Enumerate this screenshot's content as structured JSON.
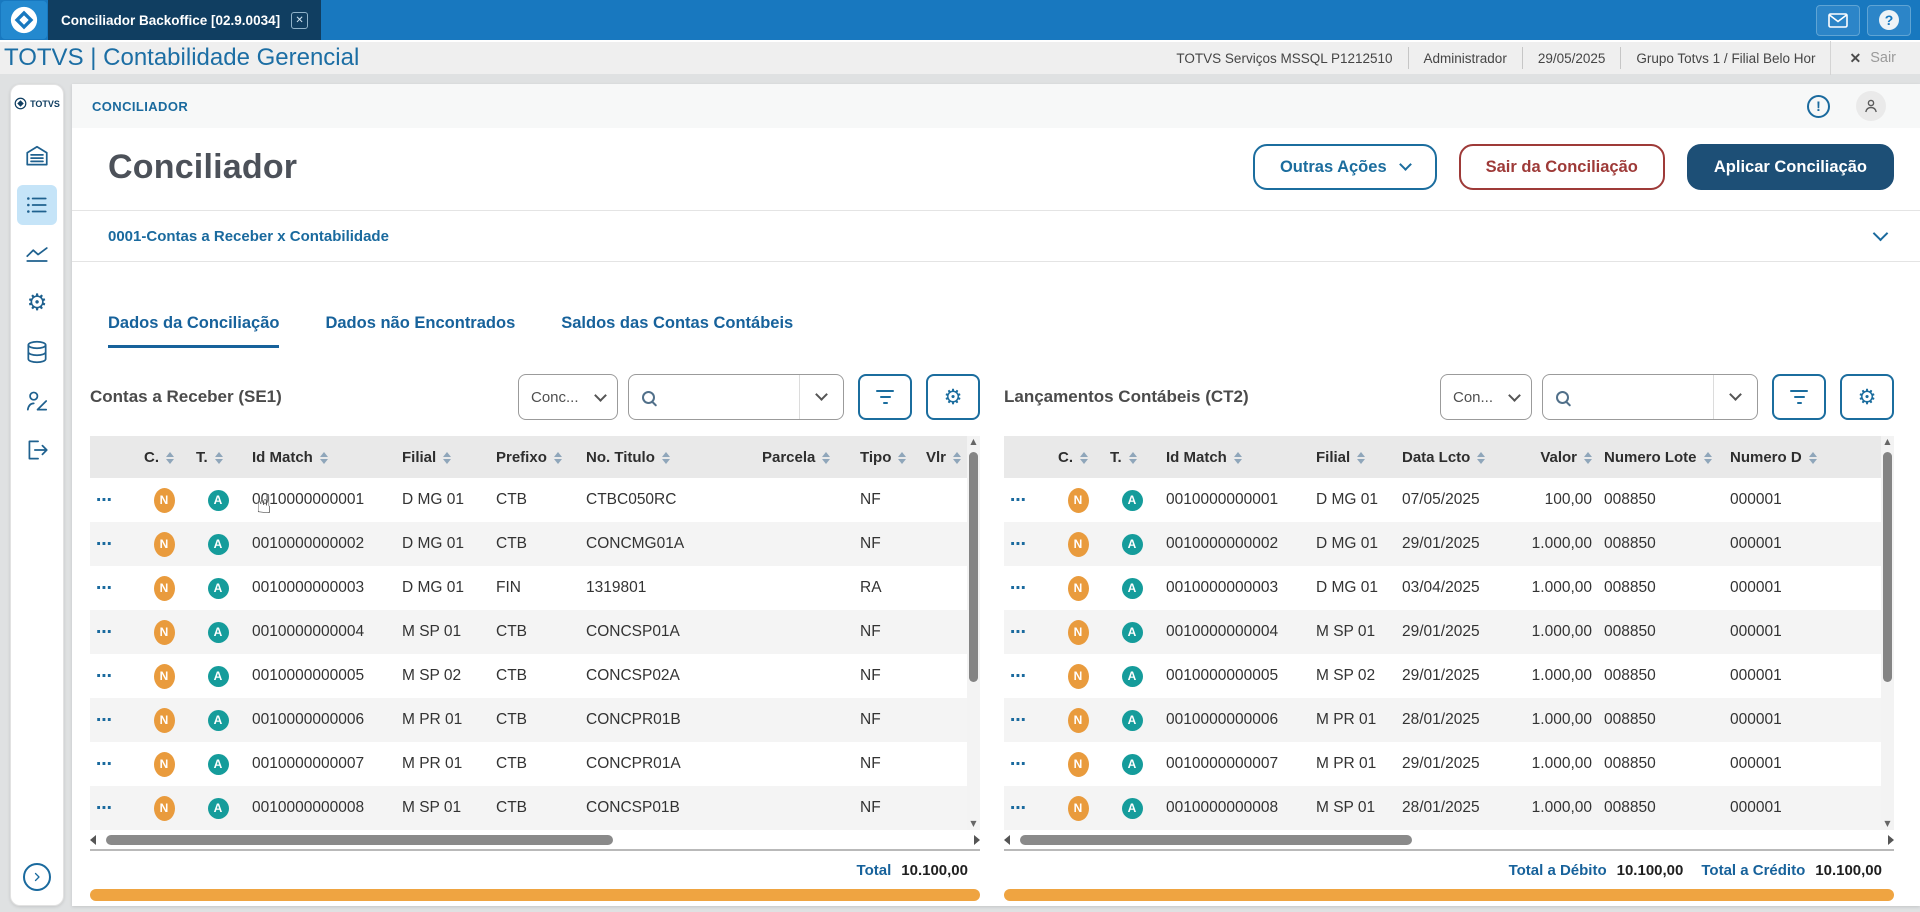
{
  "window": {
    "tab_title": "Conciliador Backoffice [02.9.0034]"
  },
  "header": {
    "brand": "TOTVS | Contabilidade Gerencial",
    "environment": "TOTVS Serviços MSSQL P1212510",
    "user": "Administrador",
    "date": "29/05/2025",
    "branch": "Grupo Totvs 1 / Filial Belo Hor",
    "logout_label": "Sair"
  },
  "sidebar": {
    "logo_text": "TOTVS",
    "items": [
      {
        "name": "home",
        "active": false
      },
      {
        "name": "menu",
        "active": true
      },
      {
        "name": "analytics",
        "active": false
      },
      {
        "name": "settings",
        "active": false
      },
      {
        "name": "database",
        "active": false
      },
      {
        "name": "audit-user",
        "active": false
      },
      {
        "name": "exit",
        "active": false
      }
    ]
  },
  "page": {
    "breadcrumb": "CONCILIADOR",
    "title": "Conciliador",
    "actions": {
      "other": "Outras Ações",
      "exit": "Sair da Conciliação",
      "apply": "Aplicar Conciliação"
    },
    "section": "0001-Contas a Receber x Contabilidade",
    "tabs": [
      {
        "name": "tab-dados-da-conciliacao",
        "label": "Dados da Conciliação",
        "active": true
      },
      {
        "name": "tab-dados-nao-encontrados",
        "label": "Dados não Encontrados",
        "active": false
      },
      {
        "name": "tab-saldos-das-contas-contabeis",
        "label": "Saldos das Contas Contábeis",
        "active": false
      }
    ]
  },
  "badges": {
    "n": "N",
    "a": "A"
  },
  "panels": {
    "left": {
      "title": "Contas a Receber (SE1)",
      "select_value": "Conc...",
      "search_value": "",
      "columns": [
        "C.",
        "T.",
        "Id Match",
        "Filial",
        "Prefixo",
        "No. Titulo",
        "Parcela",
        "Tipo",
        "Vlr"
      ],
      "rows": [
        {
          "id_match": "0010000000001",
          "filial": "D MG 01",
          "prefixo": "CTB",
          "titulo": "CTBC050RC",
          "parcela": "",
          "tipo": "NF",
          "vlr": ""
        },
        {
          "id_match": "0010000000002",
          "filial": "D MG 01",
          "prefixo": "CTB",
          "titulo": "CONCMG01A",
          "parcela": "",
          "tipo": "NF",
          "vlr": ""
        },
        {
          "id_match": "0010000000003",
          "filial": "D MG 01",
          "prefixo": "FIN",
          "titulo": "1319801",
          "parcela": "",
          "tipo": "RA",
          "vlr": ""
        },
        {
          "id_match": "0010000000004",
          "filial": "M SP 01",
          "prefixo": "CTB",
          "titulo": "CONCSP01A",
          "parcela": "",
          "tipo": "NF",
          "vlr": ""
        },
        {
          "id_match": "0010000000005",
          "filial": "M SP 02",
          "prefixo": "CTB",
          "titulo": "CONCSP02A",
          "parcela": "",
          "tipo": "NF",
          "vlr": ""
        },
        {
          "id_match": "0010000000006",
          "filial": "M PR 01",
          "prefixo": "CTB",
          "titulo": "CONCPR01B",
          "parcela": "",
          "tipo": "NF",
          "vlr": ""
        },
        {
          "id_match": "0010000000007",
          "filial": "M PR 01",
          "prefixo": "CTB",
          "titulo": "CONCPR01A",
          "parcela": "",
          "tipo": "NF",
          "vlr": ""
        },
        {
          "id_match": "0010000000008",
          "filial": "M SP 01",
          "prefixo": "CTB",
          "titulo": "CONCSP01B",
          "parcela": "",
          "tipo": "NF",
          "vlr": ""
        }
      ],
      "total_label": "Total",
      "total_value": "10.100,00"
    },
    "right": {
      "title": "Lançamentos Contábeis (CT2)",
      "select_value": "Con...",
      "search_value": "",
      "columns": [
        "C.",
        "T.",
        "Id Match",
        "Filial",
        "Data Lcto",
        "Valor",
        "Numero Lote",
        "Numero D"
      ],
      "rows": [
        {
          "id_match": "0010000000001",
          "filial": "D MG 01",
          "data_lcto": "07/05/2025",
          "valor": "100,00",
          "numero_lote": "008850",
          "numero_d": "000001"
        },
        {
          "id_match": "0010000000002",
          "filial": "D MG 01",
          "data_lcto": "29/01/2025",
          "valor": "1.000,00",
          "numero_lote": "008850",
          "numero_d": "000001"
        },
        {
          "id_match": "0010000000003",
          "filial": "D MG 01",
          "data_lcto": "03/04/2025",
          "valor": "1.000,00",
          "numero_lote": "008850",
          "numero_d": "000001"
        },
        {
          "id_match": "0010000000004",
          "filial": "M SP 01",
          "data_lcto": "29/01/2025",
          "valor": "1.000,00",
          "numero_lote": "008850",
          "numero_d": "000001"
        },
        {
          "id_match": "0010000000005",
          "filial": "M SP 02",
          "data_lcto": "29/01/2025",
          "valor": "1.000,00",
          "numero_lote": "008850",
          "numero_d": "000001"
        },
        {
          "id_match": "0010000000006",
          "filial": "M PR 01",
          "data_lcto": "28/01/2025",
          "valor": "1.000,00",
          "numero_lote": "008850",
          "numero_d": "000001"
        },
        {
          "id_match": "0010000000007",
          "filial": "M PR 01",
          "data_lcto": "29/01/2025",
          "valor": "1.000,00",
          "numero_lote": "008850",
          "numero_d": "000001"
        },
        {
          "id_match": "0010000000008",
          "filial": "M SP 01",
          "data_lcto": "28/01/2025",
          "valor": "1.000,00",
          "numero_lote": "008850",
          "numero_d": "000001"
        }
      ],
      "debit_label": "Total a Débito",
      "debit_value": "10.100,00",
      "credit_label": "Total a Crédito",
      "credit_value": "10.100,00"
    }
  },
  "colors": {
    "topbar": "#1878bf",
    "app_tab_bg": "#103e61",
    "primary": "#1a6a9e",
    "danger": "#9e3a38",
    "apply_button_bg": "#1d4f76",
    "badge_n": "#e99b3d",
    "badge_a": "#159c9b",
    "progress_bar": "#efa441",
    "sidebar_active_bg": "#c5e4f8"
  }
}
